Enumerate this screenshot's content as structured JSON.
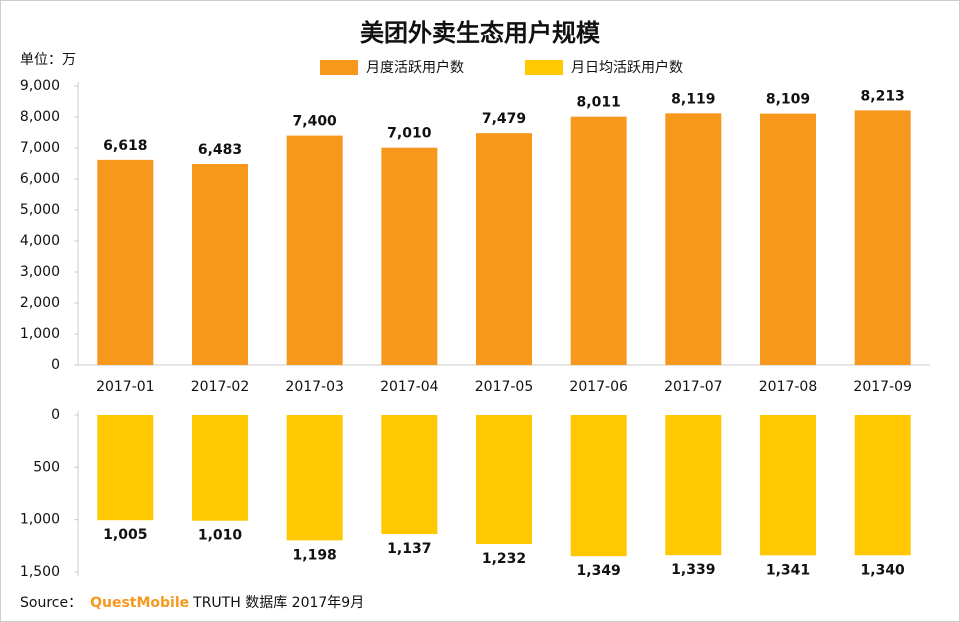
{
  "chart_data": {
    "type": "bar",
    "title": "美团外卖生态用户规模",
    "unit_label": "单位：万",
    "categories": [
      "2017-01",
      "2017-02",
      "2017-03",
      "2017-04",
      "2017-05",
      "2017-06",
      "2017-07",
      "2017-08",
      "2017-09"
    ],
    "series": [
      {
        "name": "月度活跃用户数",
        "color": "#f7981d",
        "values": [
          6618,
          6483,
          7400,
          7010,
          7479,
          8011,
          8119,
          8109,
          8213
        ],
        "value_labels": [
          "6,618",
          "6,483",
          "7,400",
          "7,010",
          "7,479",
          "8,011",
          "8,119",
          "8,109",
          "8,213"
        ]
      },
      {
        "name": "月日均活跃用户数",
        "color": "#ffc800",
        "axis": "y2",
        "values": [
          1005,
          1010,
          1198,
          1137,
          1232,
          1349,
          1339,
          1341,
          1340
        ],
        "value_labels": [
          "1,005",
          "1,010",
          "1,198",
          "1,137",
          "1,232",
          "1,349",
          "1,339",
          "1,341",
          "1,340"
        ]
      }
    ],
    "ylim": [
      0,
      9000
    ],
    "yticks": [
      0,
      {
        "value": 1000,
        "label": "1,000"
      },
      {
        "value": 2000,
        "label": "2,000"
      },
      {
        "value": 3000,
        "label": "3,000"
      },
      {
        "value": 4000,
        "label": "4,000"
      },
      {
        "value": 5000,
        "label": "5,000"
      },
      {
        "value": 6000,
        "label": "6,000"
      },
      {
        "value": 7000,
        "label": "7,000"
      },
      {
        "value": 8000,
        "label": "8,000"
      },
      {
        "value": 9000,
        "label": "9,000"
      }
    ],
    "y2lim": [
      0,
      1500
    ],
    "y2_inverted": true,
    "y2ticks": [
      0,
      500,
      {
        "value": 1000,
        "label": "1,000"
      },
      {
        "value": 1500,
        "label": "1,500"
      }
    ]
  },
  "source": {
    "label": "Source：",
    "brand": "QuestMobile",
    "text": "TRUTH 数据库 2017年9月"
  }
}
